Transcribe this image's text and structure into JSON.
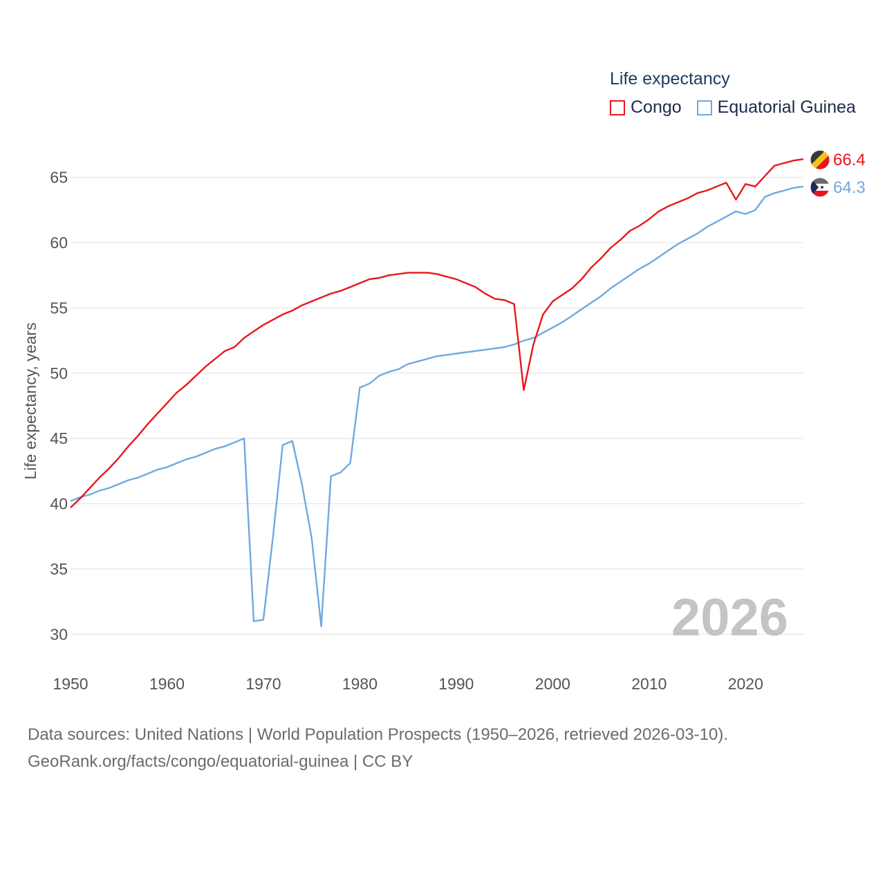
{
  "legend": {
    "title": "Life expectancy",
    "items": [
      {
        "label": "Congo",
        "color": "#e8161c"
      },
      {
        "label": "Equatorial Guinea",
        "color": "#6fa8e0"
      }
    ]
  },
  "current_year": "2026",
  "source": {
    "line1": "Data sources: United Nations | World Population Prospects (1950–2026, retrieved 2026-03-10).",
    "line2": "GeoRank.org/facts/congo/equatorial-guinea | CC BY"
  },
  "chart_data": {
    "type": "line",
    "title": "Life expectancy",
    "xlabel": "",
    "ylabel": "Life expectancy, years",
    "xlim": [
      1950,
      2026
    ],
    "ylim": [
      28,
      68
    ],
    "xticks": [
      1950,
      1960,
      1970,
      1980,
      1990,
      2000,
      2010,
      2020
    ],
    "yticks": [
      30,
      35,
      40,
      45,
      50,
      55,
      60,
      65
    ],
    "grid": true,
    "x": [
      1950,
      1951,
      1952,
      1953,
      1954,
      1955,
      1956,
      1957,
      1958,
      1959,
      1960,
      1961,
      1962,
      1963,
      1964,
      1965,
      1966,
      1967,
      1968,
      1969,
      1970,
      1971,
      1972,
      1973,
      1974,
      1975,
      1976,
      1977,
      1978,
      1979,
      1980,
      1981,
      1982,
      1983,
      1984,
      1985,
      1986,
      1987,
      1988,
      1989,
      1990,
      1991,
      1992,
      1993,
      1994,
      1995,
      1996,
      1997,
      1998,
      1999,
      2000,
      2001,
      2002,
      2003,
      2004,
      2005,
      2006,
      2007,
      2008,
      2009,
      2010,
      2011,
      2012,
      2013,
      2014,
      2015,
      2016,
      2017,
      2018,
      2019,
      2020,
      2021,
      2022,
      2023,
      2024,
      2025,
      2026
    ],
    "series": [
      {
        "name": "Congo",
        "color": "#e8161c",
        "end_label": "66.4",
        "values": [
          39.7,
          40.4,
          41.2,
          42.0,
          42.7,
          43.5,
          44.4,
          45.2,
          46.1,
          46.9,
          47.7,
          48.5,
          49.1,
          49.8,
          50.5,
          51.1,
          51.7,
          52.0,
          52.7,
          53.2,
          53.7,
          54.1,
          54.5,
          54.8,
          55.2,
          55.5,
          55.8,
          56.1,
          56.3,
          56.6,
          56.9,
          57.2,
          57.3,
          57.5,
          57.6,
          57.7,
          57.7,
          57.7,
          57.6,
          57.4,
          57.2,
          56.9,
          56.6,
          56.1,
          55.7,
          55.6,
          55.3,
          48.7,
          52.2,
          54.5,
          55.5,
          56.0,
          56.5,
          57.2,
          58.1,
          58.8,
          59.6,
          60.2,
          60.9,
          61.3,
          61.8,
          62.4,
          62.8,
          63.1,
          63.4,
          63.8,
          64.0,
          64.3,
          64.6,
          63.3,
          64.5,
          64.3,
          65.1,
          65.9,
          66.1,
          66.3,
          66.4
        ]
      },
      {
        "name": "Equatorial Guinea",
        "color": "#6fa8e0",
        "end_label": "64.3",
        "values": [
          40.2,
          40.5,
          40.7,
          41.0,
          41.2,
          41.5,
          41.8,
          42.0,
          42.3,
          42.6,
          42.8,
          43.1,
          43.4,
          43.6,
          43.9,
          44.2,
          44.4,
          44.7,
          45.0,
          31.0,
          31.1,
          37.5,
          44.5,
          44.8,
          41.5,
          37.4,
          30.6,
          42.1,
          42.4,
          43.1,
          48.9,
          49.2,
          49.8,
          50.1,
          50.3,
          50.7,
          50.9,
          51.1,
          51.3,
          51.4,
          51.5,
          51.6,
          51.7,
          51.8,
          51.9,
          52.0,
          52.2,
          52.5,
          52.7,
          53.1,
          53.5,
          53.9,
          54.4,
          54.9,
          55.4,
          55.9,
          56.5,
          57.0,
          57.5,
          58.0,
          58.4,
          58.9,
          59.4,
          59.9,
          60.3,
          60.7,
          61.2,
          61.6,
          62.0,
          62.4,
          62.2,
          62.5,
          63.5,
          63.8,
          64.0,
          64.2,
          64.3
        ]
      }
    ]
  }
}
